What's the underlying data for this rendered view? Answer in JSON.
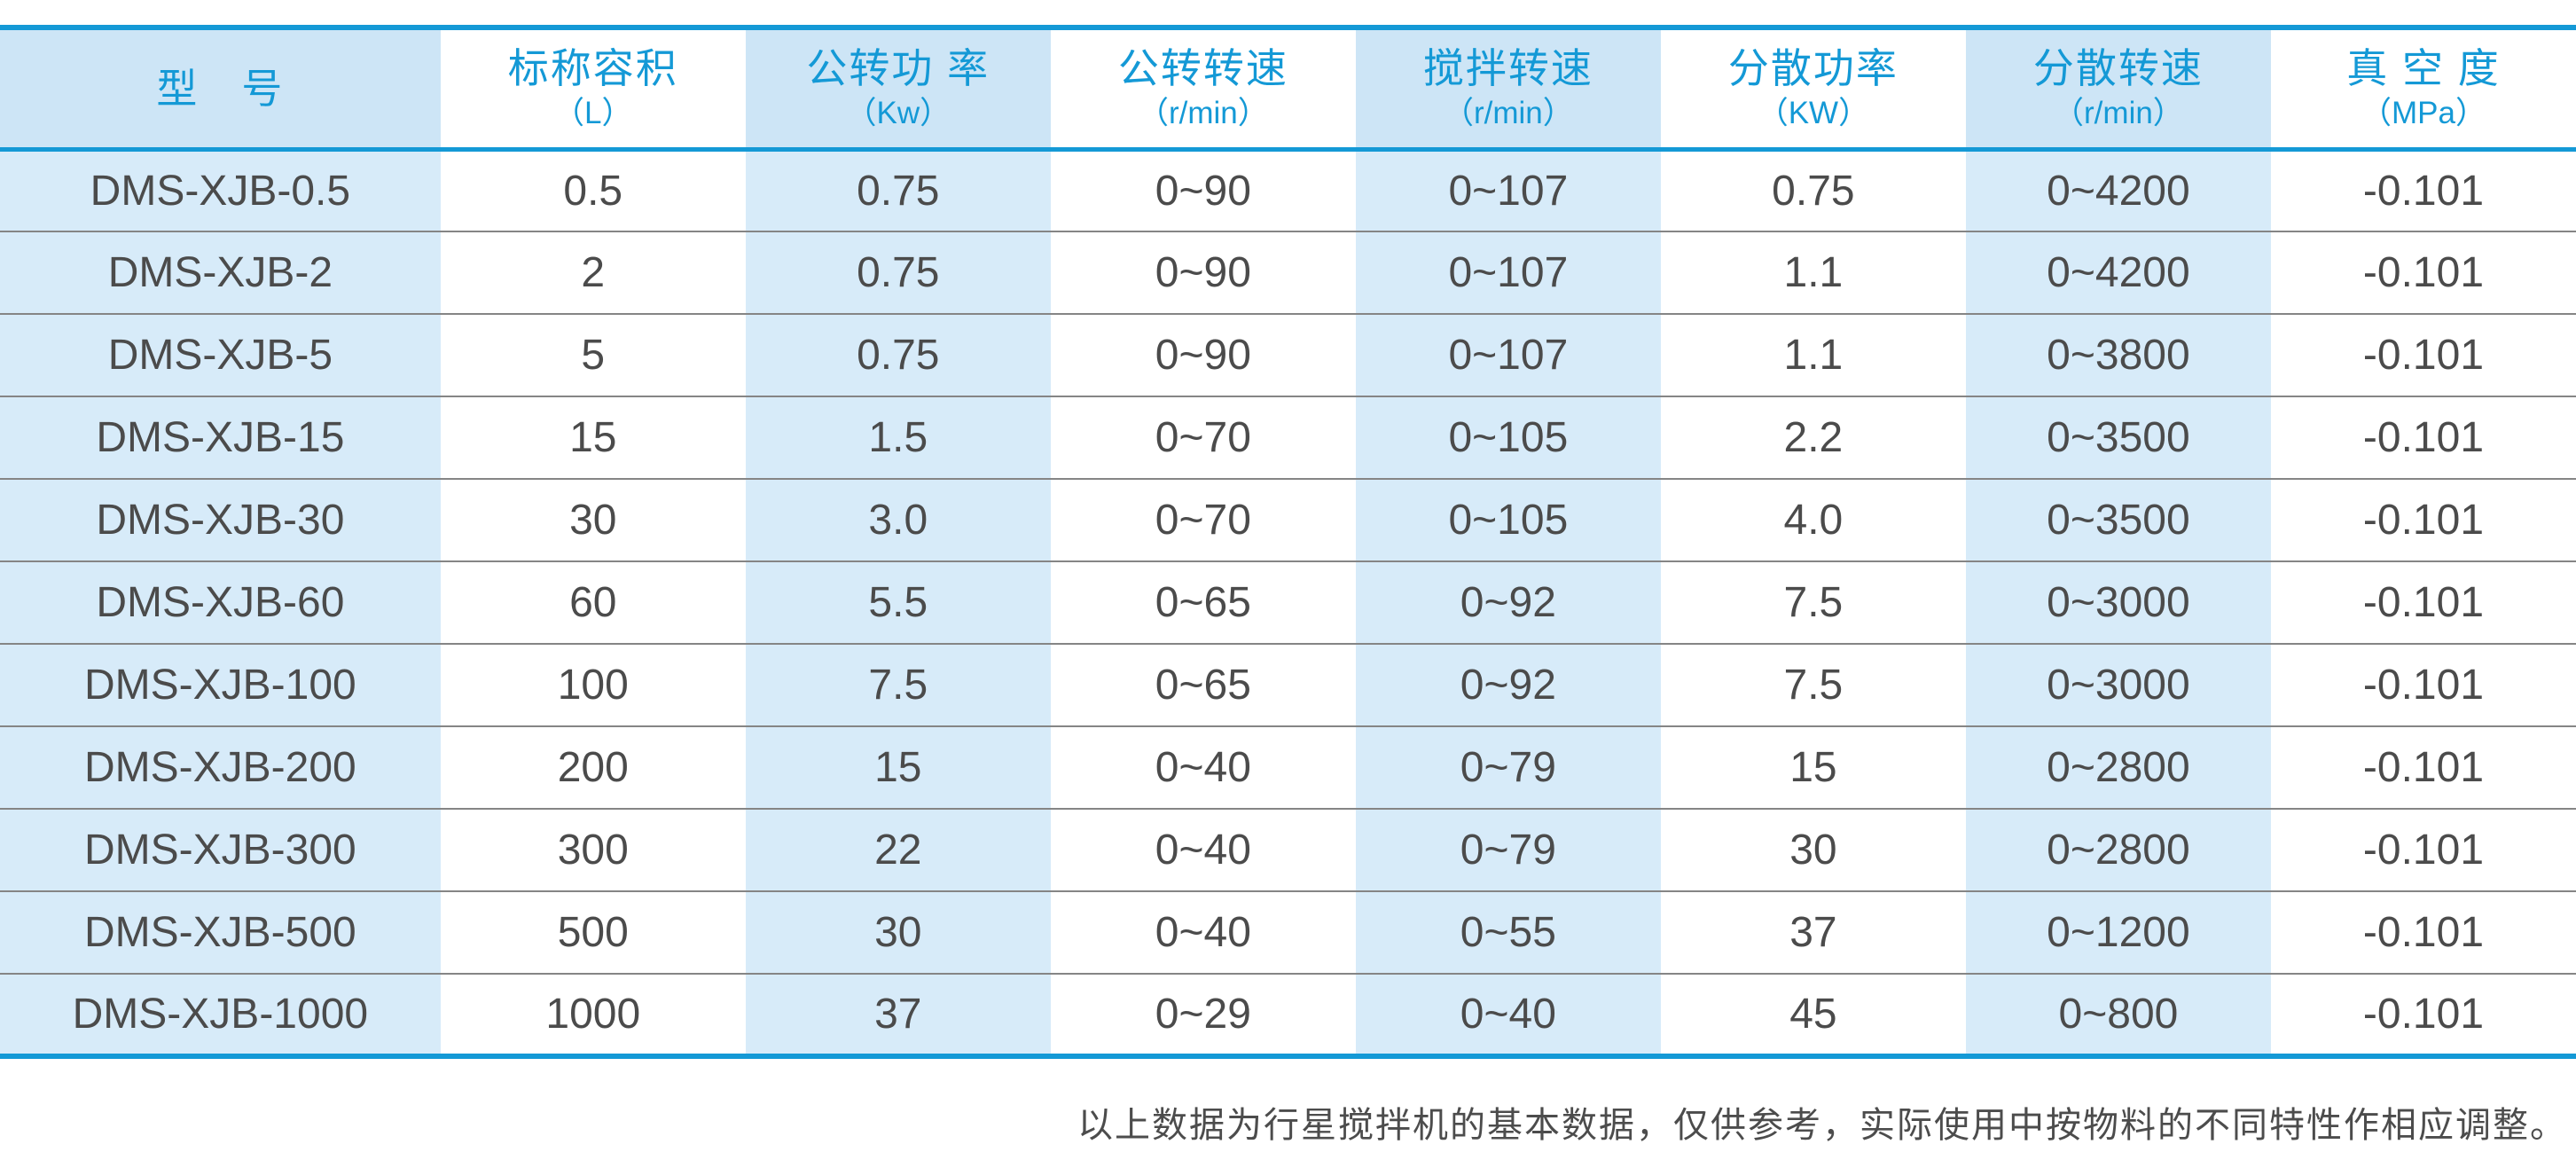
{
  "colors": {
    "accent_blue": "#1499d6",
    "header_stripe_blue": "#cde5f6",
    "body_stripe_blue": "#d7ebf9",
    "data_text": "#4b4b4b",
    "row_separator_gray": "#858585"
  },
  "table": {
    "columns": [
      {
        "title": "型　号",
        "unit": ""
      },
      {
        "title": "标称容积",
        "unit": "（L）"
      },
      {
        "title": "公转功 率",
        "unit": "（Kw）"
      },
      {
        "title": "公转转速",
        "unit": "（r/min）"
      },
      {
        "title": "搅拌转速",
        "unit": "（r/min）"
      },
      {
        "title": "分散功率",
        "unit": "（KW）"
      },
      {
        "title": "分散转速",
        "unit": "（r/min）"
      },
      {
        "title": "真 空 度",
        "unit": "（MPa）"
      }
    ],
    "rows": [
      [
        "DMS-XJB-0.5",
        "0.5",
        "0.75",
        "0~90",
        "0~107",
        "0.75",
        "0~4200",
        "-0.101"
      ],
      [
        "DMS-XJB-2",
        "2",
        "0.75",
        "0~90",
        "0~107",
        "1.1",
        "0~4200",
        "-0.101"
      ],
      [
        "DMS-XJB-5",
        "5",
        "0.75",
        "0~90",
        "0~107",
        "1.1",
        "0~3800",
        "-0.101"
      ],
      [
        "DMS-XJB-15",
        "15",
        "1.5",
        "0~70",
        "0~105",
        "2.2",
        "0~3500",
        "-0.101"
      ],
      [
        "DMS-XJB-30",
        "30",
        "3.0",
        "0~70",
        "0~105",
        "4.0",
        "0~3500",
        "-0.101"
      ],
      [
        "DMS-XJB-60",
        "60",
        "5.5",
        "0~65",
        "0~92",
        "7.5",
        "0~3000",
        "-0.101"
      ],
      [
        "DMS-XJB-100",
        "100",
        "7.5",
        "0~65",
        "0~92",
        "7.5",
        "0~3000",
        "-0.101"
      ],
      [
        "DMS-XJB-200",
        "200",
        "15",
        "0~40",
        "0~79",
        "15",
        "0~2800",
        "-0.101"
      ],
      [
        "DMS-XJB-300",
        "300",
        "22",
        "0~40",
        "0~79",
        "30",
        "0~2800",
        "-0.101"
      ],
      [
        "DMS-XJB-500",
        "500",
        "30",
        "0~40",
        "0~55",
        "37",
        "0~1200",
        "-0.101"
      ],
      [
        "DMS-XJB-1000",
        "1000",
        "37",
        "0~29",
        "0~40",
        "45",
        "0~800",
        "-0.101"
      ]
    ]
  },
  "footer": {
    "note": "以上数据为行星搅拌机的基本数据，仅供参考，实际使用中按物料的不同特性作相应调整。"
  }
}
